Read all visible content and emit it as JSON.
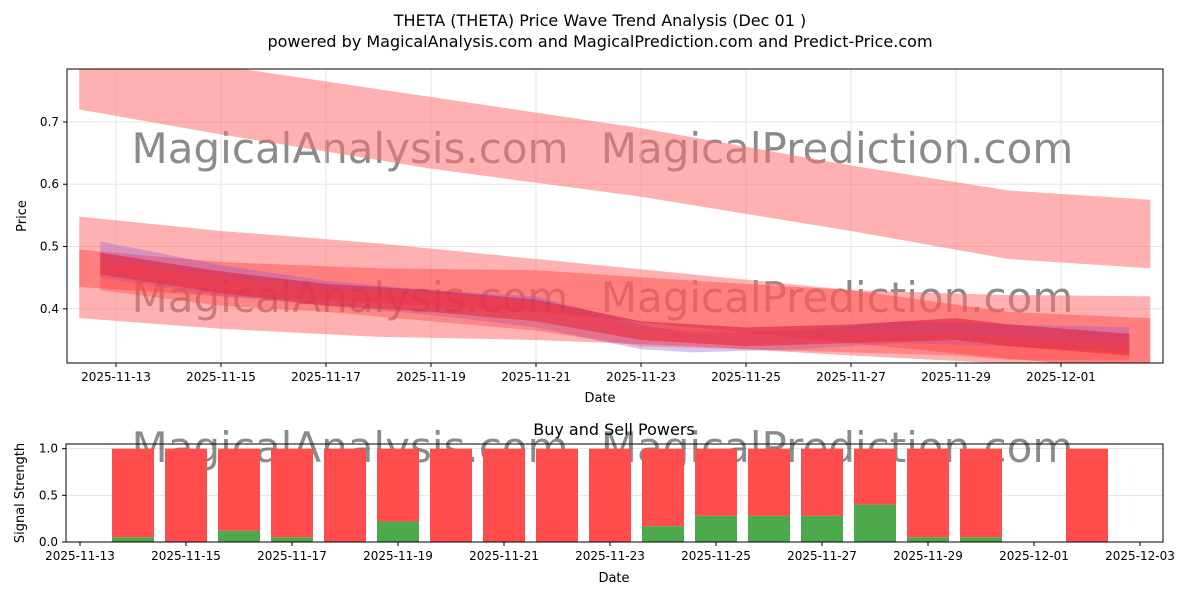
{
  "chart_data": [
    {
      "type": "area",
      "title": "THETA (THETA) Price Wave Trend Analysis (Dec 01 )",
      "subtitle": "powered by MagicalAnalysis.com and MagicalPrediction.com and Predict-Price.com",
      "xlabel": "Date",
      "ylabel": "Price",
      "xlim": [
        "2025-11-12.07",
        "2025-12-02.94"
      ],
      "ylim": [
        0.313,
        0.785
      ],
      "grid": true,
      "yticks": [
        0.4,
        0.5,
        0.6,
        0.7
      ],
      "xticks": [
        "2025-11-13",
        "2025-11-15",
        "2025-11-17",
        "2025-11-19",
        "2025-11-21",
        "2025-11-23",
        "2025-11-25",
        "2025-11-27",
        "2025-11-29",
        "2025-12-01"
      ],
      "watermarks": [
        "MagicalAnalysis.com",
        "MagicalPrediction.com"
      ],
      "bands": [
        {
          "name": "upper-band",
          "color": "#ff7070",
          "opacity": 0.55,
          "x": [
            -0.7,
            2,
            6,
            10,
            14,
            17,
            19.7
          ],
          "upper": [
            0.8,
            0.79,
            0.74,
            0.69,
            0.63,
            0.59,
            0.575
          ],
          "lower": [
            0.72,
            0.68,
            0.625,
            0.58,
            0.525,
            0.48,
            0.465
          ]
        },
        {
          "name": "wide-band",
          "color": "#ff7070",
          "opacity": 0.55,
          "x": [
            -0.7,
            2,
            5,
            8,
            11,
            14,
            17,
            19.7
          ],
          "upper": [
            0.548,
            0.525,
            0.505,
            0.48,
            0.455,
            0.43,
            0.422,
            0.42
          ],
          "lower": [
            0.385,
            0.368,
            0.355,
            0.35,
            0.34,
            0.325,
            0.312,
            0.31
          ]
        },
        {
          "name": "mid-band",
          "color": "#ff4d4d",
          "opacity": 0.5,
          "x": [
            -0.7,
            2,
            5,
            8,
            11,
            14,
            17,
            19.7
          ],
          "upper": [
            0.495,
            0.475,
            0.465,
            0.462,
            0.445,
            0.43,
            0.395,
            0.385
          ],
          "lower": [
            0.435,
            0.42,
            0.41,
            0.395,
            0.37,
            0.345,
            0.32,
            0.3
          ]
        },
        {
          "name": "wave-1",
          "color": "#8a5ad8",
          "opacity": 0.35,
          "x": [
            -0.3,
            2,
            4,
            6,
            8,
            10,
            11,
            13,
            15,
            17,
            19.3
          ],
          "upper": [
            0.508,
            0.47,
            0.445,
            0.43,
            0.42,
            0.375,
            0.36,
            0.365,
            0.38,
            0.375,
            0.37
          ],
          "lower": [
            0.45,
            0.42,
            0.405,
            0.39,
            0.37,
            0.335,
            0.33,
            0.335,
            0.345,
            0.34,
            0.33
          ]
        },
        {
          "name": "wave-2",
          "color": "#e0223c",
          "opacity": 0.6,
          "x": [
            -0.3,
            2,
            4,
            6,
            8,
            10,
            12,
            14,
            16,
            17,
            19.3
          ],
          "upper": [
            0.49,
            0.46,
            0.44,
            0.43,
            0.415,
            0.38,
            0.37,
            0.375,
            0.385,
            0.375,
            0.36
          ],
          "lower": [
            0.455,
            0.425,
            0.405,
            0.395,
            0.38,
            0.35,
            0.34,
            0.345,
            0.35,
            0.34,
            0.325
          ]
        },
        {
          "name": "wave-3",
          "color": "#ff3a3a",
          "opacity": 0.35,
          "x": [
            -0.3,
            2,
            4,
            6,
            8,
            10,
            12,
            14,
            16,
            17,
            19.3
          ],
          "upper": [
            0.48,
            0.45,
            0.43,
            0.425,
            0.41,
            0.37,
            0.362,
            0.36,
            0.36,
            0.355,
            0.345
          ],
          "lower": [
            0.43,
            0.405,
            0.395,
            0.38,
            0.365,
            0.34,
            0.335,
            0.33,
            0.325,
            0.318,
            0.318
          ]
        }
      ]
    },
    {
      "type": "bar",
      "title": "Buy and Sell Powers",
      "xlabel": "Date",
      "ylabel": "Signal Strength",
      "ylim": [
        0,
        1.05
      ],
      "yticks": [
        0.0,
        0.5,
        1.0
      ],
      "xticks": [
        "2025-11-13",
        "2025-11-15",
        "2025-11-17",
        "2025-11-19",
        "2025-11-21",
        "2025-11-23",
        "2025-11-25",
        "2025-11-27",
        "2025-11-29",
        "2025-12-01",
        "2025-12-03"
      ],
      "categories": [
        "2025-11-14",
        "2025-11-15",
        "2025-11-16",
        "2025-11-17",
        "2025-11-18",
        "2025-11-19",
        "2025-11-20",
        "2025-11-21",
        "2025-11-22",
        "2025-11-23",
        "2025-11-24",
        "2025-11-25",
        "2025-11-26",
        "2025-11-27",
        "2025-11-28",
        "2025-11-29",
        "2025-11-30",
        "2025-12-02"
      ],
      "series": [
        {
          "name": "Buy",
          "color": "#4caa4c",
          "values": [
            0.05,
            0,
            0.12,
            0.05,
            0,
            0.22,
            0,
            0,
            0,
            0,
            0.17,
            0.28,
            0.28,
            0.28,
            0.4,
            0.05,
            0.05,
            0
          ]
        },
        {
          "name": "Sell",
          "color": "#ff4d4d",
          "values": [
            0.95,
            1,
            0.88,
            0.95,
            1,
            0.78,
            1,
            1,
            1,
            1,
            0.83,
            0.72,
            0.72,
            0.72,
            0.6,
            0.95,
            0.95,
            1
          ]
        }
      ]
    }
  ]
}
